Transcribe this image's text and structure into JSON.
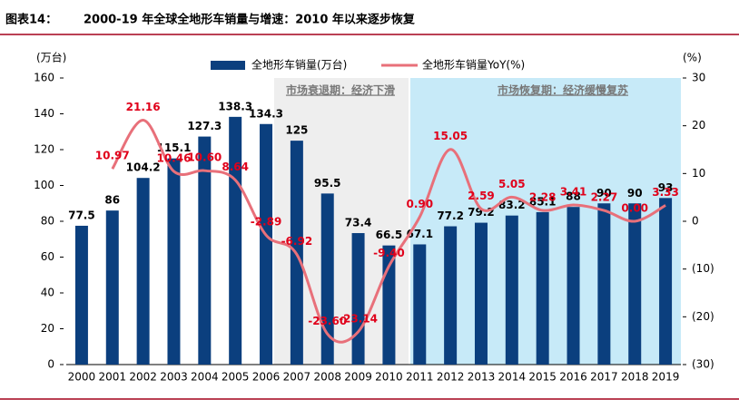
{
  "figure_label": "图表14：",
  "chart_data": {
    "type": "bar-line",
    "title": "2000-19 年全球全地形车销量与增速：2010 年以来逐步恢复",
    "y_unit": "(万台)",
    "y2_unit": "(%)",
    "categories": [
      "2000",
      "2001",
      "2002",
      "2003",
      "2004",
      "2005",
      "2006",
      "2007",
      "2008",
      "2009",
      "2010",
      "2011",
      "2012",
      "2013",
      "2014",
      "2015",
      "2016",
      "2017",
      "2018",
      "2019"
    ],
    "series": [
      {
        "name": "全地形车销量(万台)",
        "type": "bar",
        "color": "#0b3f7e",
        "values": [
          77.5,
          86,
          104.2,
          115.1,
          127.3,
          138.3,
          134.3,
          125,
          95.5,
          73.4,
          66.5,
          67.1,
          77.2,
          79.2,
          83.2,
          85.1,
          88,
          90,
          90,
          93
        ]
      },
      {
        "name": "全地形车销量YoY(%)",
        "type": "line",
        "axis": "y2",
        "color": "#e8707a",
        "values": [
          null,
          10.97,
          21.16,
          10.46,
          10.6,
          8.64,
          -2.89,
          -6.92,
          -23.6,
          -23.14,
          -9.4,
          0.9,
          15.05,
          2.59,
          5.05,
          2.28,
          3.41,
          2.27,
          0,
          3.33
        ],
        "value_labels": [
          null,
          "10.97",
          "21.16",
          "10.46",
          "10.60",
          "8.64",
          "-2.89",
          "-6.92",
          "-23.60",
          "-23.14",
          "-9.40",
          "0.90",
          "15.05",
          "2.59",
          "5.05",
          "2.28",
          "3.41",
          "2.27",
          "0.00",
          "3.33"
        ]
      }
    ],
    "ylim": [
      0,
      160
    ],
    "yticks": [
      0,
      20,
      40,
      60,
      80,
      100,
      120,
      140,
      160
    ],
    "y2lim": [
      -30,
      30
    ],
    "y2ticks": [
      {
        "value": -30,
        "label": "(30)"
      },
      {
        "value": -20,
        "label": "(20)"
      },
      {
        "value": -10,
        "label": "(10)"
      },
      0,
      10,
      20,
      30
    ],
    "annotations": [
      "市场衰退期：经济下滑",
      "市场恢复期：经济缓慢复苏"
    ]
  }
}
